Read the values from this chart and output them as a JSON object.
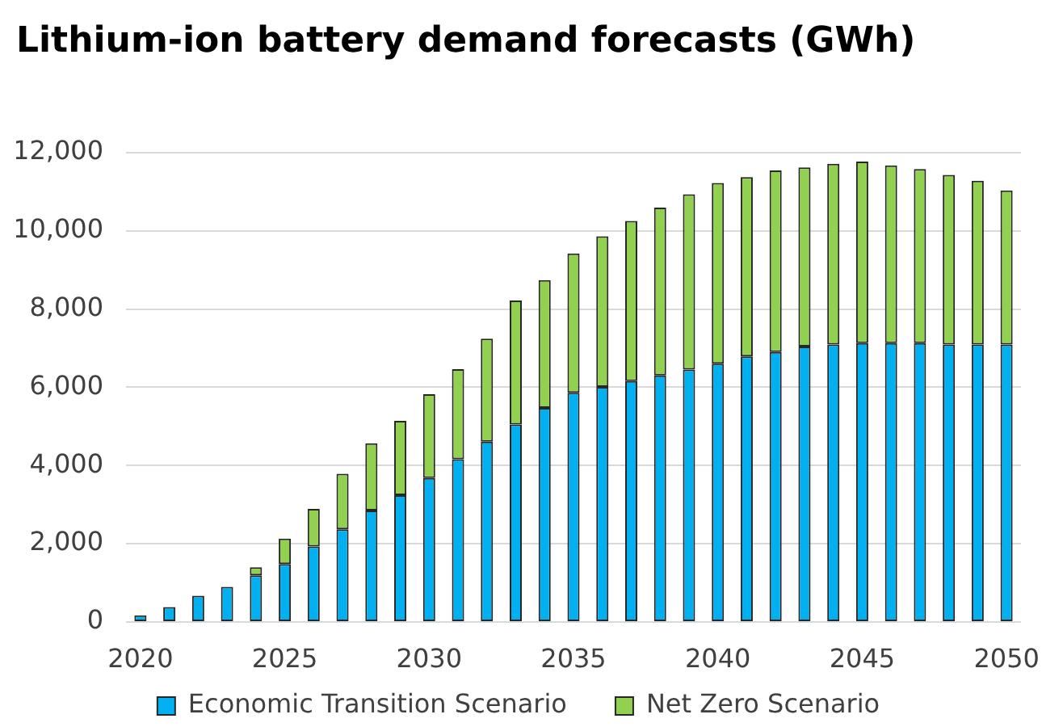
{
  "chart_data": {
    "type": "bar",
    "title": "Lithium-ion battery demand forecasts (GWh)",
    "categories": [
      "2020",
      null,
      null,
      null,
      null,
      "2025",
      null,
      null,
      null,
      null,
      "2030",
      null,
      null,
      null,
      null,
      "2035",
      null,
      null,
      null,
      null,
      "2040",
      null,
      null,
      null,
      null,
      "2045",
      null,
      null,
      null,
      null,
      "2050"
    ],
    "series": [
      {
        "name": "Economic Transition Scenario",
        "color": "#00b0f0",
        "values": [
          170,
          380,
          670,
          900,
          1190,
          1480,
          1930,
          2370,
          2850,
          3240,
          3680,
          4160,
          4610,
          5050,
          5470,
          5860,
          6010,
          6160,
          6300,
          6450,
          6600,
          6790,
          6900,
          7040,
          7090,
          7130,
          7130,
          7130,
          7090,
          7090,
          7090
        ]
      },
      {
        "name": "Net Zero Scenario",
        "color": "#92d050",
        "values": [
          0,
          0,
          0,
          0,
          210,
          650,
          960,
          1420,
          1720,
          1900,
          2140,
          2300,
          2630,
          3170,
          3270,
          3560,
          3850,
          4090,
          4290,
          4480,
          4620,
          4580,
          4640,
          4580,
          4620,
          4640,
          4540,
          4450,
          4340,
          4190,
          3940
        ]
      }
    ],
    "stacked": true,
    "ylim": [
      0,
      12000
    ],
    "yticks": [
      0,
      {
        "value": 2000,
        "label": "2,000"
      },
      {
        "value": 4000,
        "label": "4,000"
      },
      {
        "value": 6000,
        "label": "6,000"
      },
      {
        "value": 8000,
        "label": "8,000"
      },
      {
        "value": 10000,
        "label": "10,000"
      },
      {
        "value": 12000,
        "label": "12,000"
      }
    ],
    "grid": "y",
    "legend": "bottom"
  }
}
